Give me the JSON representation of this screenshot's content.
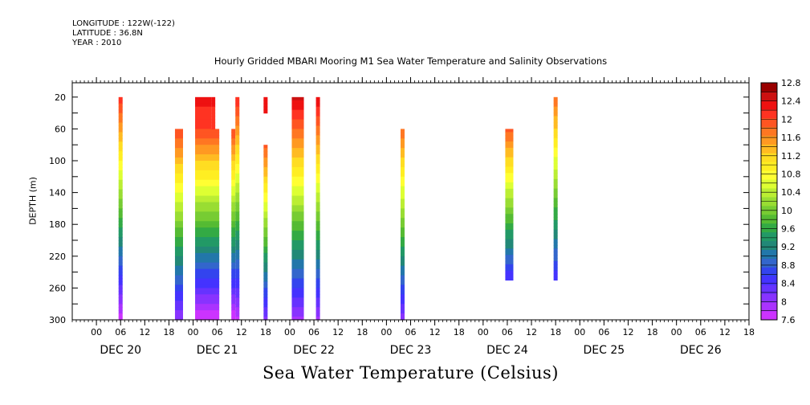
{
  "header": {
    "longitude": "LONGITUDE : 122W(-122)",
    "latitude": "LATITUDE : 36.8N",
    "year": "YEAR : 2010"
  },
  "chart_data": {
    "type": "heatmap",
    "title": "Hourly Gridded MBARI Mooring M1 Sea Water Temperature and Salinity Observations",
    "xlabel": "Sea Water Temperature (Celsius)",
    "ylabel": "DEPTH (m)",
    "x_axis": {
      "unit": "hours from DEC 20 00:00",
      "range": [
        -6,
        162
      ],
      "tick_labels": [
        "00",
        "06",
        "12",
        "18",
        "00",
        "06",
        "12",
        "18",
        "00",
        "06",
        "12",
        "18",
        "00",
        "06",
        "12",
        "18",
        "00",
        "06",
        "12",
        "18",
        "00",
        "06",
        "12",
        "18",
        "00",
        "06",
        "12",
        "18"
      ],
      "day_labels": [
        "DEC 20",
        "DEC 21",
        "DEC 22",
        "DEC 23",
        "DEC 24",
        "DEC 25",
        "DEC 26"
      ]
    },
    "y_axis": {
      "ylim": [
        300,
        2
      ],
      "inverted": true,
      "tick_labels": [
        "20",
        "60",
        "100",
        "140",
        "180",
        "220",
        "260",
        "300"
      ]
    },
    "colorbar": {
      "labels": [
        "12.8",
        "12.4",
        "12",
        "11.6",
        "11.2",
        "10.8",
        "10.4",
        "10",
        "9.6",
        "9.2",
        "8.8",
        "8.4",
        "8",
        "7.6"
      ],
      "levels": [
        7.6,
        7.8,
        8.0,
        8.2,
        8.4,
        8.6,
        8.8,
        9.0,
        9.2,
        9.4,
        9.6,
        9.8,
        10.0,
        10.2,
        10.4,
        10.6,
        10.8,
        11.0,
        11.2,
        11.4,
        11.6,
        11.8,
        12.0,
        12.2,
        12.4,
        12.6,
        12.8
      ],
      "colors": [
        "#cc33ff",
        "#aa33ff",
        "#8833ff",
        "#6633ff",
        "#4433ff",
        "#3344ee",
        "#3366cc",
        "#2277aa",
        "#228877",
        "#229966",
        "#33aa44",
        "#55bb33",
        "#77cc33",
        "#99dd33",
        "#bbee33",
        "#ddff33",
        "#ffff33",
        "#ffee22",
        "#ffdd22",
        "#ffbb22",
        "#ff9922",
        "#ff7722",
        "#ff5522",
        "#ff3322",
        "#ee1111",
        "#cc1111",
        "#990000"
      ]
    },
    "columns": [
      {
        "x0": 5.5,
        "x1": 6.5,
        "depth_top": 20,
        "depth_bottom": 300,
        "temp_top": 12.3,
        "temp_bottom": 7.7
      },
      {
        "x0": 19.5,
        "x1": 21.5,
        "depth_top": 60,
        "depth_bottom": 300,
        "temp_top": 12.2,
        "temp_bottom": 8.0
      },
      {
        "x0": 24.5,
        "x1": 28.5,
        "depth_top": 20,
        "depth_bottom": 60,
        "temp_top": 12.5,
        "temp_bottom": 12.2
      },
      {
        "x0": 24.5,
        "x1": 30.5,
        "depth_top": 60,
        "depth_bottom": 300,
        "temp_top": 12.2,
        "temp_bottom": 7.6
      },
      {
        "x0": 28.5,
        "x1": 29.5,
        "depth_top": 20,
        "depth_bottom": 60,
        "temp_top": 12.5,
        "temp_bottom": 12.2
      },
      {
        "x0": 33.5,
        "x1": 34.5,
        "depth_top": 60,
        "depth_bottom": 300,
        "temp_top": 12.2,
        "temp_bottom": 7.6
      },
      {
        "x0": 34.5,
        "x1": 35.5,
        "depth_top": 20,
        "depth_bottom": 300,
        "temp_top": 12.4,
        "temp_bottom": 7.7
      },
      {
        "x0": 41.5,
        "x1": 42.5,
        "depth_top": 20,
        "depth_bottom": 40,
        "temp_top": 12.5,
        "temp_bottom": 12.4
      },
      {
        "x0": 41.5,
        "x1": 42.5,
        "depth_top": 80,
        "depth_bottom": 300,
        "temp_top": 12.1,
        "temp_bottom": 8.1
      },
      {
        "x0": 48.5,
        "x1": 51.5,
        "depth_top": 20,
        "depth_bottom": 300,
        "temp_top": 12.7,
        "temp_bottom": 7.9
      },
      {
        "x0": 54.5,
        "x1": 55.5,
        "depth_top": 20,
        "depth_bottom": 300,
        "temp_top": 12.6,
        "temp_bottom": 7.9
      },
      {
        "x0": 75.5,
        "x1": 76.5,
        "depth_top": 60,
        "depth_bottom": 300,
        "temp_top": 12.0,
        "temp_bottom": 8.1
      },
      {
        "x0": 101.5,
        "x1": 103.5,
        "depth_top": 60,
        "depth_bottom": 250,
        "temp_top": 12.1,
        "temp_bottom": 8.4
      },
      {
        "x0": 113.5,
        "x1": 114.5,
        "depth_top": 20,
        "depth_bottom": 250,
        "temp_top": 12.0,
        "temp_bottom": 8.4
      }
    ]
  }
}
